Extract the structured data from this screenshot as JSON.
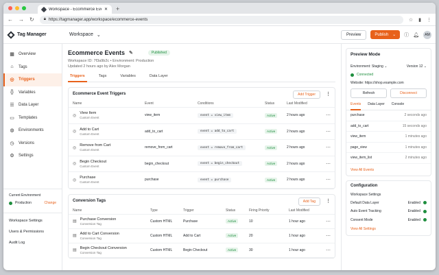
{
  "browser": {
    "tab_title": "Workspace - Ecommerce Events",
    "url": "https://tagmanager.app/workspace/ecommerce-events"
  },
  "app": {
    "name": "Tag Manager",
    "workspace_label": "Workspace",
    "preview_label": "Preview",
    "publish_label": "Publish",
    "avatar_initials": "AM"
  },
  "sidebar": {
    "items": [
      {
        "label": "Overview",
        "icon": "grid-icon"
      },
      {
        "label": "Tags",
        "icon": "tag-icon"
      },
      {
        "label": "Triggers",
        "icon": "bolt-icon",
        "active": true
      },
      {
        "label": "Variables",
        "icon": "code-icon"
      },
      {
        "label": "Data Layer",
        "icon": "layers-icon"
      },
      {
        "label": "Templates",
        "icon": "template-icon"
      },
      {
        "label": "Environments",
        "icon": "globe-icon"
      },
      {
        "label": "Versions",
        "icon": "history-icon"
      },
      {
        "label": "Settings",
        "icon": "gear-icon"
      }
    ],
    "env_title": "Current Environment",
    "env_value": "Production",
    "env_change": "Change",
    "bottom": [
      "Workspace Settings",
      "Users & Permissions",
      "Audit Log"
    ]
  },
  "page": {
    "title": "Ecommerce Events",
    "status": "Published",
    "meta1": "Workspace ID: 7f3a9b2c  •  Environment: Production",
    "meta2": "Updated 2 hours ago by Alex Morgan",
    "tabs": [
      "Triggers",
      "Tags",
      "Variables",
      "Data Layer"
    ]
  },
  "triggers": {
    "title": "Ecommerce Event Triggers",
    "add_label": "Add Trigger",
    "columns": [
      "Name",
      "Event",
      "Conditions",
      "Status",
      "Last Modified"
    ],
    "rows": [
      {
        "name": "View Item",
        "type": "Custom Event",
        "event": "view_item",
        "cond": "event = view_item",
        "status": "Active",
        "modified": "2 hours ago"
      },
      {
        "name": "Add to Cart",
        "type": "Custom Event",
        "event": "add_to_cart",
        "cond": "event = add_to_cart",
        "status": "Active",
        "modified": "2 hours ago"
      },
      {
        "name": "Remove from Cart",
        "type": "Custom Event",
        "event": "remove_from_cart",
        "cond": "event = remove_from_cart",
        "status": "Active",
        "modified": "2 hours ago"
      },
      {
        "name": "Begin Checkout",
        "type": "Custom Event",
        "event": "begin_checkout",
        "cond": "event = begin_checkout",
        "status": "Active",
        "modified": "2 hours ago"
      },
      {
        "name": "Purchase",
        "type": "Custom Event",
        "event": "purchase",
        "cond": "event = purchase",
        "status": "Active",
        "modified": "2 hours ago"
      }
    ]
  },
  "tags": {
    "title": "Conversion Tags",
    "add_label": "Add Tag",
    "columns": [
      "Name",
      "Type",
      "Trigger",
      "Status",
      "Firing Priority",
      "Last Modified"
    ],
    "rows": [
      {
        "name": "Purchase Conversion",
        "sub": "Conversion Tag",
        "type": "Custom HTML",
        "trigger": "Purchase",
        "status": "Active",
        "priority": "10",
        "modified": "1 hour ago"
      },
      {
        "name": "Add to Cart Conversion",
        "sub": "Conversion Tag",
        "type": "Custom HTML",
        "trigger": "Add to Cart",
        "status": "Active",
        "priority": "20",
        "modified": "1 hour ago"
      },
      {
        "name": "Begin Checkout Conversion",
        "sub": "Conversion Tag",
        "type": "Custom HTML",
        "trigger": "Begin Checkout",
        "status": "Active",
        "priority": "30",
        "modified": "1 hour ago"
      }
    ]
  },
  "preview": {
    "title": "Preview Mode",
    "env": "Environment: Staging",
    "version": "Version 12",
    "connected": "Connected",
    "website": "Website: https://shop.example.com",
    "refresh": "Refresh",
    "disconnect": "Disconnect",
    "tabs": [
      "Events",
      "Data Layer",
      "Console"
    ],
    "events": [
      {
        "name": "purchase",
        "time": "2 seconds ago"
      },
      {
        "name": "add_to_cart",
        "time": "15 seconds ago"
      },
      {
        "name": "view_item",
        "time": "1 minutes ago"
      },
      {
        "name": "page_view",
        "time": "1 minutes ago"
      },
      {
        "name": "view_item_list",
        "time": "2 minutes ago"
      }
    ],
    "view_all": "View All Events"
  },
  "config": {
    "title": "Configuration",
    "subtitle": "Workspace Settings",
    "items": [
      {
        "label": "Default Data Layer",
        "value": "Enabled"
      },
      {
        "label": "Auto Event Tracking",
        "value": "Enabled"
      },
      {
        "label": "Consent Mode",
        "value": "Enabled"
      }
    ],
    "view_all": "View All Settings"
  },
  "colors": {
    "accent": "#e8611a",
    "success": "#1e8e3e"
  }
}
